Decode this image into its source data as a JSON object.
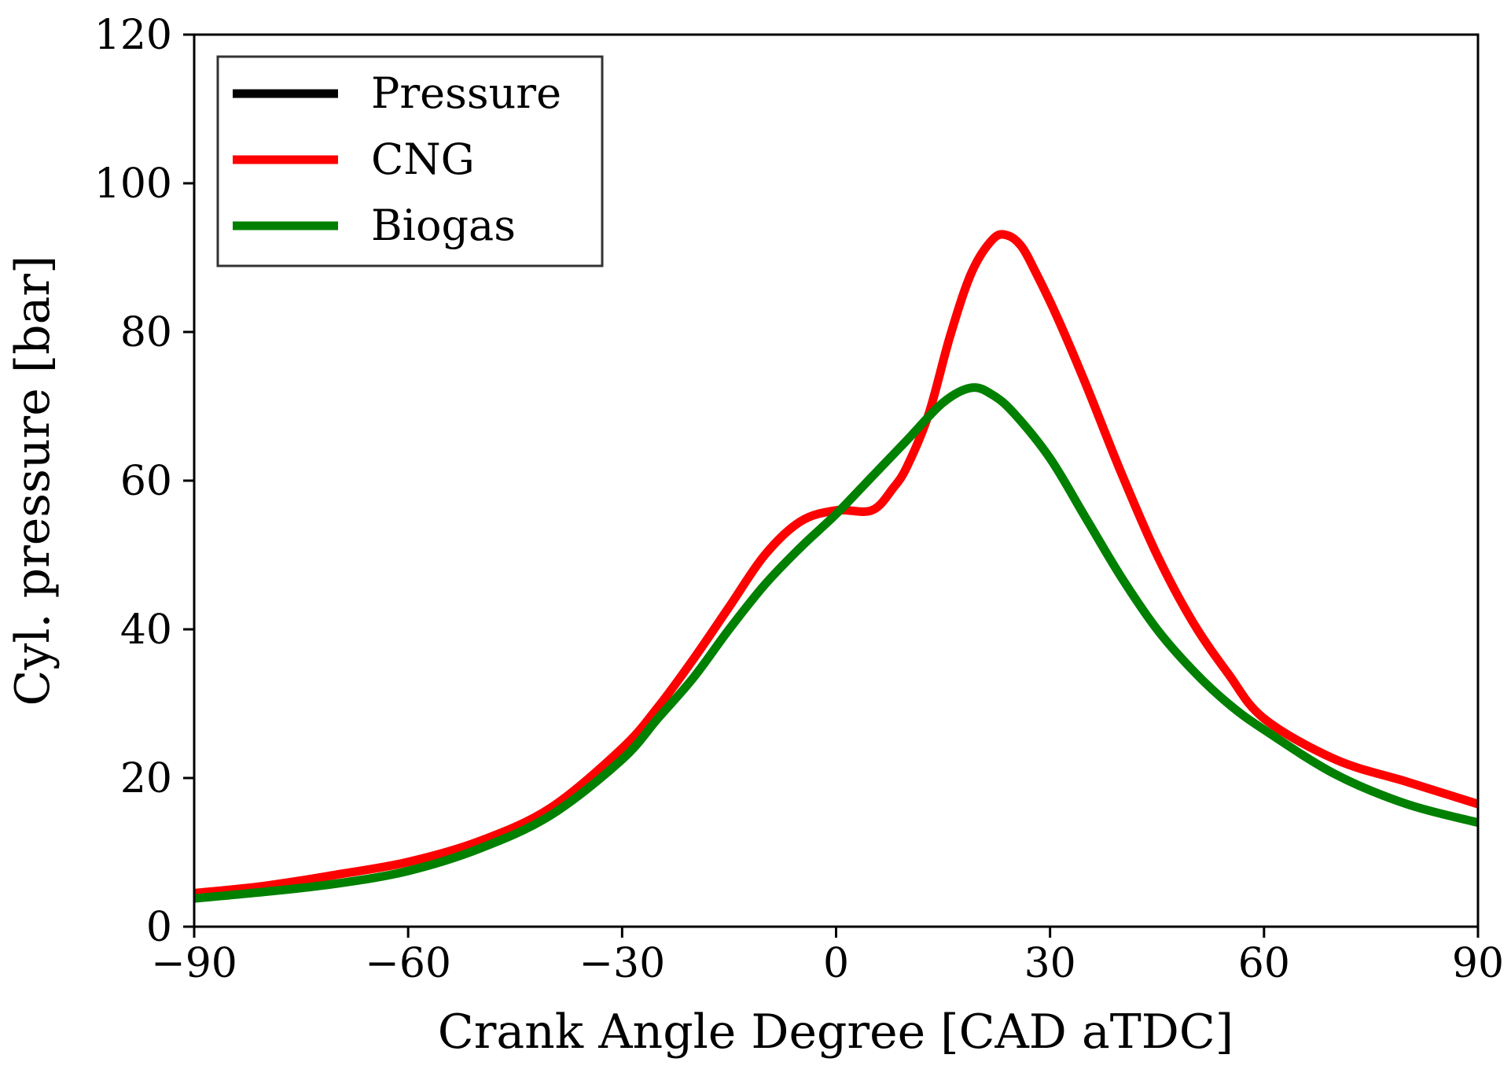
{
  "chart_data": {
    "type": "line",
    "title": "",
    "xlabel": "Crank Angle Degree [CAD aTDC]",
    "ylabel": "Cyl. pressure [bar]",
    "xlim": [
      -90,
      90
    ],
    "ylim": [
      0,
      120
    ],
    "xticks": [
      -90,
      -60,
      -30,
      0,
      30,
      60,
      90
    ],
    "xtick_labels": [
      "−90",
      "−60",
      "−30",
      "0",
      "30",
      "60",
      "90"
    ],
    "yticks": [
      0,
      20,
      40,
      60,
      80,
      100,
      120
    ],
    "ytick_labels": [
      "0",
      "20",
      "40",
      "60",
      "80",
      "100",
      "120"
    ],
    "grid": false,
    "legend_position": "top-left",
    "series": [
      {
        "name": "Pressure",
        "color": "#000000",
        "x": [],
        "y": []
      },
      {
        "name": "CNG",
        "color": "#ff0000",
        "x": [
          -90,
          -80,
          -70,
          -60,
          -50,
          -40,
          -30,
          -25,
          -20,
          -15,
          -10,
          -5,
          0,
          5,
          8,
          10,
          13,
          16,
          19,
          22,
          24,
          26,
          28,
          31,
          35,
          40,
          45,
          50,
          55,
          60,
          70,
          80,
          90
        ],
        "y": [
          4.5,
          5.5,
          7,
          8.7,
          11.5,
          16,
          24,
          29.5,
          36,
          43,
          50,
          54.5,
          56,
          56,
          59,
          62,
          69,
          79.5,
          88,
          92.5,
          93,
          91.5,
          88,
          82,
          73,
          61,
          50,
          41,
          34,
          28,
          22.5,
          19.5,
          16.5
        ]
      },
      {
        "name": "Biogas",
        "color": "#008000",
        "x": [
          -90,
          -80,
          -70,
          -60,
          -50,
          -40,
          -30,
          -25,
          -20,
          -15,
          -10,
          -5,
          0,
          5,
          10,
          15,
          19,
          22,
          25,
          30,
          35,
          40,
          45,
          50,
          55,
          60,
          70,
          80,
          90
        ],
        "y": [
          3.8,
          4.7,
          5.8,
          7.5,
          10.5,
          15,
          22.5,
          28,
          33.5,
          40,
          46,
          51,
          55.5,
          60.5,
          65.5,
          70.5,
          72.5,
          71.5,
          69,
          63,
          55,
          47,
          40,
          34.5,
          30,
          26.5,
          20.5,
          16.5,
          14
        ]
      }
    ]
  }
}
